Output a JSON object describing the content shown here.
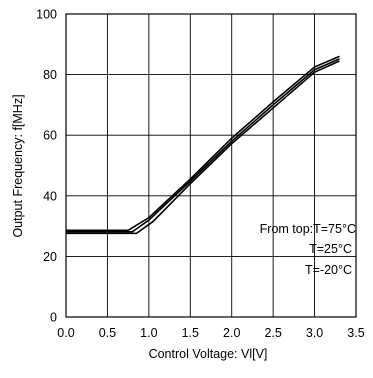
{
  "chart_data": {
    "type": "line",
    "title": "",
    "xlabel": "Control Voltage: Vl[V]",
    "ylabel": "Output Frequency: f[MHz]",
    "xlim": [
      0.0,
      3.5
    ],
    "ylim": [
      0,
      100
    ],
    "xticks": [
      0.0,
      0.5,
      1.0,
      1.5,
      2.0,
      2.5,
      3.0,
      3.5
    ],
    "xtick_labels": [
      "0.0",
      "0.5",
      "1.0",
      "1.5",
      "2.0",
      "2.5",
      "3.0",
      "3.5"
    ],
    "yticks": [
      0,
      20,
      40,
      60,
      80,
      100
    ],
    "ytick_labels": [
      "0",
      "20",
      "40",
      "60",
      "80",
      "100"
    ],
    "grid": true,
    "line_color": "#000000",
    "series": [
      {
        "name": "T=75°C",
        "x": [
          0.0,
          0.75,
          1.0,
          1.5,
          2.0,
          2.5,
          3.0,
          3.3
        ],
        "y": [
          28.6,
          28.6,
          32.8,
          45.5,
          59,
          71,
          82.5,
          86
        ]
      },
      {
        "name": "T=25°C",
        "x": [
          0.0,
          0.8,
          1.0,
          1.5,
          2.0,
          2.5,
          3.0,
          3.3
        ],
        "y": [
          28.1,
          28.1,
          32,
          44.8,
          58,
          70,
          81.6,
          85.2
        ]
      },
      {
        "name": "T=-20°C",
        "x": [
          0.0,
          0.85,
          1.05,
          1.5,
          2.0,
          2.5,
          3.0,
          3.3
        ],
        "y": [
          27.6,
          27.6,
          31.5,
          44,
          57.2,
          69,
          80.8,
          84.5
        ]
      }
    ],
    "annotations": [
      "From top:T=75°C",
      "T=25°C",
      "T=-20°C"
    ]
  }
}
